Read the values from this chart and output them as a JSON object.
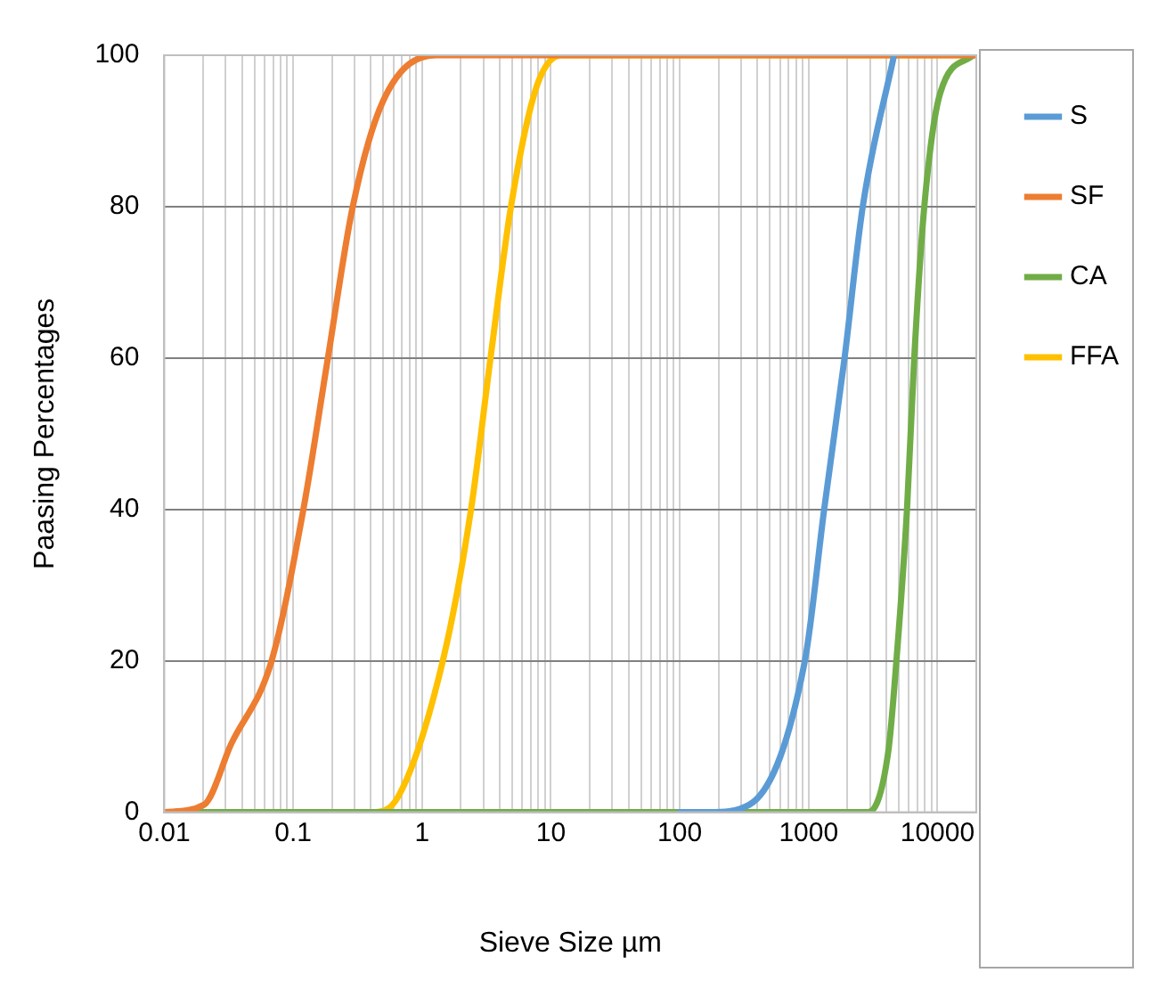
{
  "chart_data": {
    "type": "line",
    "xlabel": "Sieve Size µm",
    "ylabel": "Paasing Percentages",
    "log": "x",
    "grid": true,
    "legend": "right",
    "marker": "none",
    "line_style": "solid",
    "xlim": [
      0.01,
      20000
    ],
    "xticks": [
      0.01,
      {
        "value": 0.02,
        "label": null
      },
      {
        "value": 0.03,
        "label": null
      },
      {
        "value": 0.04,
        "label": null
      },
      {
        "value": 0.05,
        "label": null
      },
      {
        "value": 0.06,
        "label": null
      },
      {
        "value": 0.07,
        "label": null
      },
      {
        "value": 0.08,
        "label": null
      },
      {
        "value": 0.09,
        "label": null
      },
      0.1,
      {
        "value": 0.2,
        "label": null
      },
      {
        "value": 0.3,
        "label": null
      },
      {
        "value": 0.4,
        "label": null
      },
      {
        "value": 0.5,
        "label": null
      },
      {
        "value": 0.6,
        "label": null
      },
      {
        "value": 0.7,
        "label": null
      },
      {
        "value": 0.8,
        "label": null
      },
      {
        "value": 0.9,
        "label": null
      },
      1,
      {
        "value": 2,
        "label": null
      },
      {
        "value": 3,
        "label": null
      },
      {
        "value": 4,
        "label": null
      },
      {
        "value": 5,
        "label": null
      },
      {
        "value": 6,
        "label": null
      },
      {
        "value": 7,
        "label": null
      },
      {
        "value": 8,
        "label": null
      },
      {
        "value": 9,
        "label": null
      },
      10,
      {
        "value": 20,
        "label": null
      },
      {
        "value": 30,
        "label": null
      },
      {
        "value": 40,
        "label": null
      },
      {
        "value": 50,
        "label": null
      },
      {
        "value": 60,
        "label": null
      },
      {
        "value": 70,
        "label": null
      },
      {
        "value": 80,
        "label": null
      },
      {
        "value": 90,
        "label": null
      },
      100,
      {
        "value": 200,
        "label": null
      },
      {
        "value": 300,
        "label": null
      },
      {
        "value": 400,
        "label": null
      },
      {
        "value": 500,
        "label": null
      },
      {
        "value": 600,
        "label": null
      },
      {
        "value": 700,
        "label": null
      },
      {
        "value": 800,
        "label": null
      },
      {
        "value": 900,
        "label": null
      },
      1000,
      {
        "value": 2000,
        "label": null
      },
      {
        "value": 3000,
        "label": null
      },
      {
        "value": 4000,
        "label": null
      },
      {
        "value": 5000,
        "label": null
      },
      {
        "value": 6000,
        "label": null
      },
      {
        "value": 7000,
        "label": null
      },
      {
        "value": 8000,
        "label": null
      },
      {
        "value": 9000,
        "label": null
      },
      10000
    ],
    "ylim": [
      0,
      100
    ],
    "yticks": [
      0,
      20,
      40,
      60,
      80,
      100
    ],
    "series": [
      {
        "name": "S",
        "color": "#5b9bd5",
        "x": [
          100,
          170,
          347,
          935,
          1320,
          1900,
          2630,
          4600
        ],
        "values": [
          0,
          0,
          1,
          20,
          40,
          60,
          80,
          100
        ]
      },
      {
        "name": "SF",
        "color": "#ed7d31",
        "x": [
          0.01,
          0.0204,
          0.033,
          0.068,
          0.12,
          0.186,
          0.29,
          0.5,
          1.29,
          20000
        ],
        "values": [
          0,
          1,
          9,
          20,
          40,
          60,
          80,
          94,
          100,
          100
        ]
      },
      {
        "name": "CA",
        "color": "#70ad47",
        "x": [
          0.01,
          2900,
          4150,
          4800,
          5800,
          6600,
          7900,
          10500,
          19000
        ],
        "values": [
          0,
          0,
          8,
          20,
          40,
          60,
          80,
          95,
          100
        ]
      },
      {
        "name": "FFA",
        "color": "#ffc000",
        "x": [
          0.01,
          0.41,
          0.65,
          1.45,
          2.4,
          3.4,
          4.9,
          7.8,
          12.3,
          20000
        ],
        "values": [
          0,
          0,
          2,
          20,
          40,
          60,
          80,
          96,
          100,
          100
        ]
      }
    ]
  }
}
